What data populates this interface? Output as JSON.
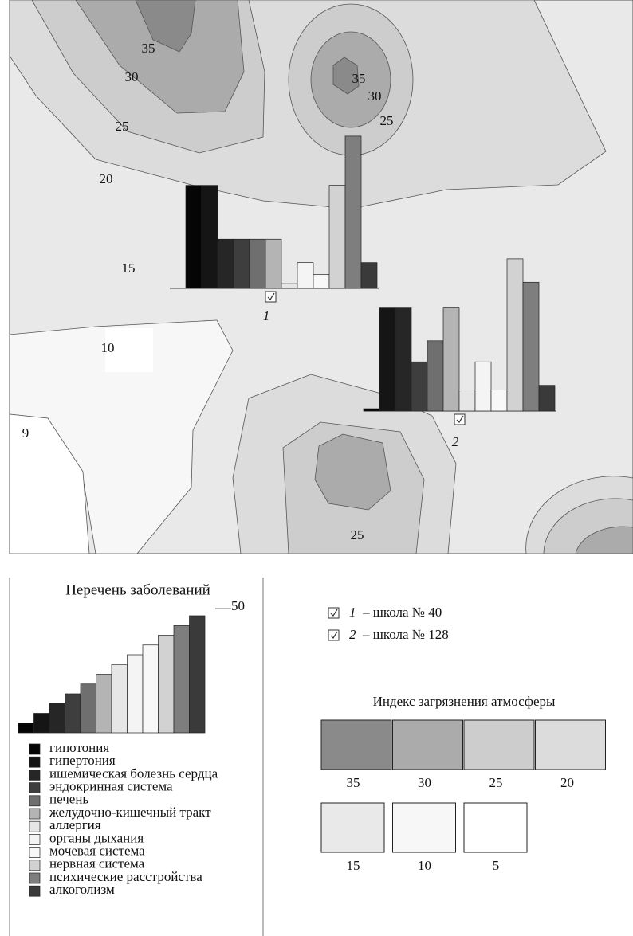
{
  "contour_labels": [
    35,
    30,
    25,
    20,
    15,
    10,
    9,
    35,
    30,
    25,
    25
  ],
  "diseases": {
    "title": "Перечень заболеваний",
    "scale_max": 50,
    "items": [
      {
        "name": "гипотония",
        "color": "#050505"
      },
      {
        "name": "гипертония",
        "color": "#151515"
      },
      {
        "name": "ишемическая болезнь сердца",
        "color": "#262626"
      },
      {
        "name": "эндокринная система",
        "color": "#3e3e3e"
      },
      {
        "name": "печень",
        "color": "#6f6f6f"
      },
      {
        "name": "желудочно-кишечный тракт",
        "color": "#b4b4b4"
      },
      {
        "name": "аллергия",
        "color": "#e6e6e6"
      },
      {
        "name": "органы дыхания",
        "color": "#f4f4f4"
      },
      {
        "name": "мочевая система",
        "color": "#f8f8f8"
      },
      {
        "name": "нервная система",
        "color": "#d2d2d2"
      },
      {
        "name": "психические расстройства",
        "color": "#7e7e7e"
      },
      {
        "name": "алкоголизм",
        "color": "#3a3a3a"
      }
    ]
  },
  "schools": [
    {
      "number": "1",
      "label": "– школа № 40",
      "values": [
        44,
        44,
        21,
        21,
        21,
        21,
        2,
        11,
        6,
        44,
        65,
        11
      ]
    },
    {
      "number": "2",
      "label": "– школа № 128",
      "values": [
        1,
        44,
        44,
        21,
        30,
        44,
        9,
        21,
        9,
        65,
        55,
        11
      ]
    }
  ],
  "pollution_index": {
    "title": "Индекс загрязнения атмосферы",
    "levels": [
      {
        "value": 35,
        "color": "#8a8a8a"
      },
      {
        "value": 30,
        "color": "#ababab"
      },
      {
        "value": 25,
        "color": "#cdcdcd"
      },
      {
        "value": 20,
        "color": "#dcdcdc"
      },
      {
        "value": 15,
        "color": "#e9e9e9"
      },
      {
        "value": 10,
        "color": "#f7f7f7"
      },
      {
        "value": 5,
        "color": "#ffffff"
      }
    ]
  }
}
